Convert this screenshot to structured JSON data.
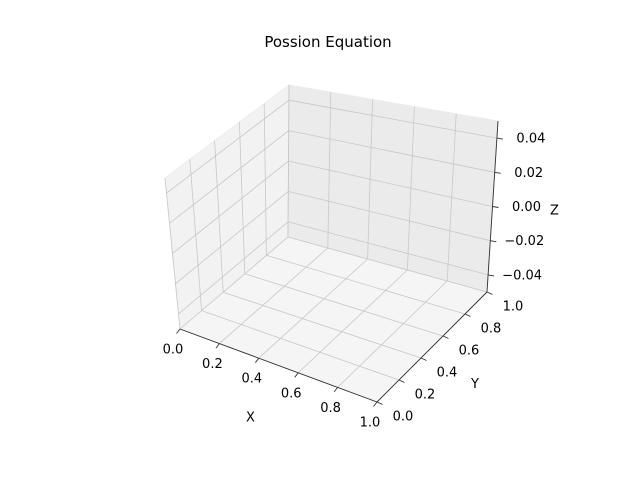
{
  "chart_data": {
    "type": "scatter",
    "projection": "3d",
    "title": "Possion Equation",
    "xlabel": "X",
    "ylabel": "Y",
    "zlabel": "Z",
    "xlim": [
      0,
      1
    ],
    "ylim": [
      0,
      1
    ],
    "zlim": [
      -0.05,
      0.05
    ],
    "xticks": [
      "0.0",
      "0.2",
      "0.4",
      "0.6",
      "0.8",
      "1.0"
    ],
    "yticks": [
      "0.0",
      "0.2",
      "0.4",
      "0.6",
      "0.8",
      "1.0"
    ],
    "zticks": [
      "−0.04",
      "−0.02",
      "0.00",
      "0.02",
      "0.04"
    ],
    "grid": true,
    "series": [],
    "colors": {
      "pane_floor": "#f5f5f5",
      "pane_left": "#f2f2f2",
      "pane_back": "#ebebeb",
      "grid": "#c8c8c8",
      "pane_edge": "#ececec",
      "axis": "#333333"
    }
  }
}
